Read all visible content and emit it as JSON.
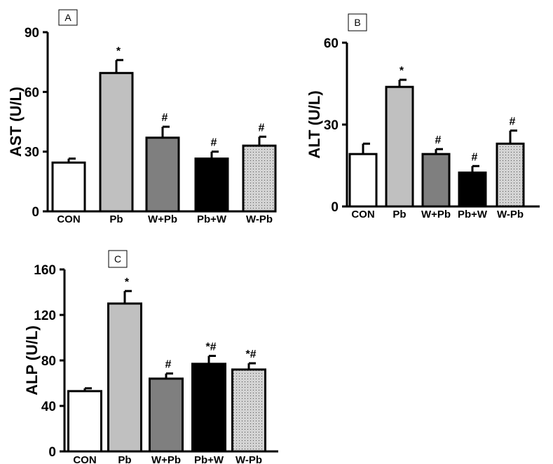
{
  "chart_data": [
    {
      "type": "bar",
      "panel": "A",
      "ylabel": "AST (U/L)",
      "xlabel": "",
      "ylim": [
        0,
        90
      ],
      "yticks": [
        "0",
        "30",
        "60",
        "90"
      ],
      "categories": [
        "CON",
        "Pb",
        "W+Pb",
        "Pb+W",
        "W-Pb"
      ],
      "values": [
        24.5,
        69.5,
        37.0,
        26.5,
        33.0
      ],
      "errors": [
        2.0,
        6.5,
        5.5,
        3.5,
        4.5
      ],
      "annotations": [
        "",
        "*",
        "#",
        "#",
        "#"
      ]
    },
    {
      "type": "bar",
      "panel": "B",
      "ylabel": "ALT (U/L)",
      "xlabel": "",
      "ylim": [
        0,
        60
      ],
      "yticks": [
        "0",
        "30",
        "60"
      ],
      "categories": [
        "CON",
        "Pb",
        "W+Pb",
        "Pb+W",
        "W-Pb"
      ],
      "values": [
        19.2,
        43.8,
        19.2,
        12.4,
        23.0
      ],
      "errors": [
        3.8,
        2.6,
        1.8,
        2.4,
        4.8
      ],
      "annotations": [
        "",
        "*",
        "#",
        "#",
        "#"
      ]
    },
    {
      "type": "bar",
      "panel": "C",
      "ylabel": "ALP (U/L)",
      "xlabel": "",
      "ylim": [
        0,
        160
      ],
      "yticks": [
        "0",
        "40",
        "80",
        "120",
        "160"
      ],
      "categories": [
        "CON",
        "Pb",
        "W+Pb",
        "Pb+W",
        "W-Pb"
      ],
      "values": [
        53,
        130,
        64,
        77,
        72
      ],
      "errors": [
        2.5,
        11,
        4.5,
        7,
        5.5
      ],
      "annotations": [
        "",
        "*",
        "#",
        "*#",
        "*#"
      ]
    }
  ],
  "colors": {
    "bar_fills": [
      "#ffffff",
      "#c0c0c0",
      "#7f7f7f",
      "#000000",
      "#d3d3d3"
    ],
    "stroke": "#000000"
  }
}
